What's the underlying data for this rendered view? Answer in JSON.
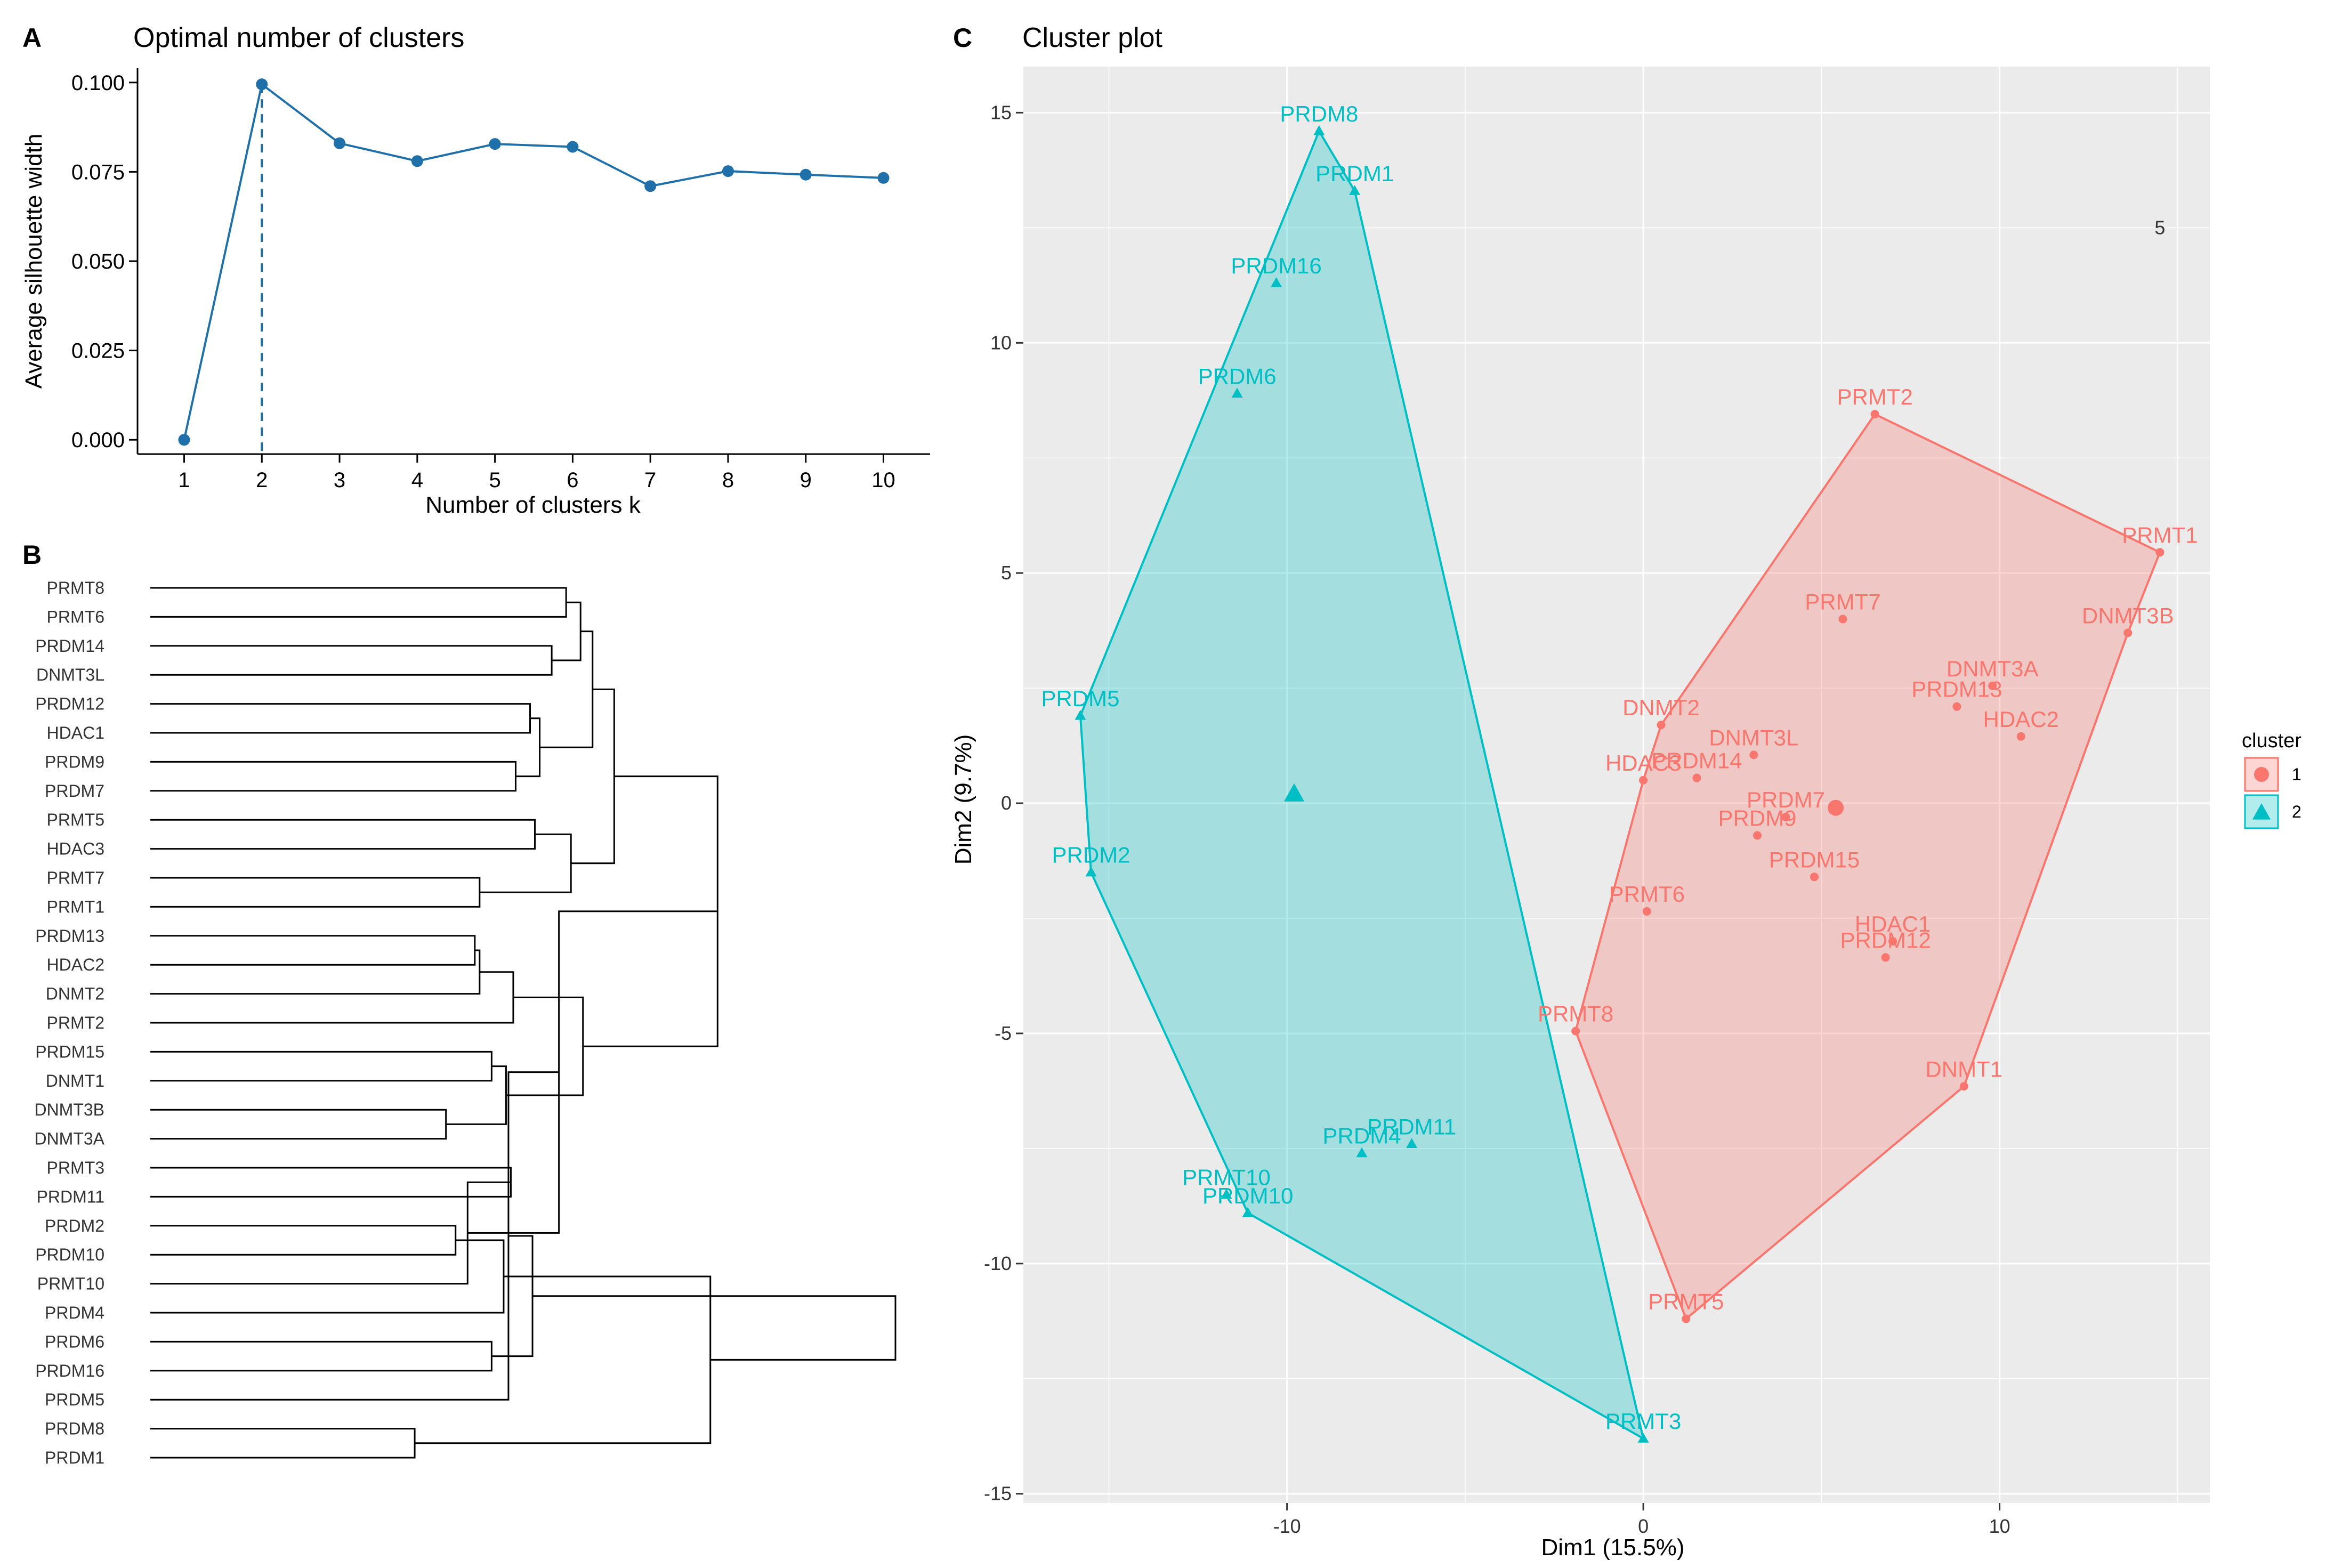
{
  "colors": {
    "line_blue": "#1f6fa8",
    "cluster1": "#f8766d",
    "cluster2": "#00bfc4",
    "panel_bg": "#ebebeb",
    "grid": "#ffffff"
  },
  "chart_data": [
    {
      "id": "A",
      "panel_letter": "A",
      "type": "line",
      "title": "Optimal number of clusters",
      "xlabel": "Number of clusters k",
      "ylabel": "Average silhouette width",
      "x": [
        1,
        2,
        3,
        4,
        5,
        6,
        7,
        8,
        9,
        10
      ],
      "x_tick_labels": [
        "1",
        "2",
        "3",
        "4",
        "5",
        "6",
        "7",
        "8",
        "9",
        "10"
      ],
      "values": [
        0.0,
        0.0995,
        0.083,
        0.078,
        0.0828,
        0.082,
        0.071,
        0.0752,
        0.0742,
        0.0733
      ],
      "ylim": [
        -0.004,
        0.104
      ],
      "y_ticks": [
        0.0,
        0.025,
        0.05,
        0.075,
        0.1
      ],
      "y_tick_labels": [
        "0.000",
        "0.025",
        "0.050",
        "0.075",
        "0.100"
      ],
      "optimal_k": 2
    },
    {
      "id": "B",
      "panel_letter": "B",
      "type": "dendrogram",
      "leaves": [
        "PRMT8",
        "PRMT6",
        "PRDM14",
        "DNMT3L",
        "PRDM12",
        "HDAC1",
        "PRDM9",
        "PRDM7",
        "PRMT5",
        "HDAC3",
        "PRMT7",
        "PRMT1",
        "PRDM13",
        "HDAC2",
        "DNMT2",
        "PRMT2",
        "PRDM15",
        "DNMT1",
        "DNMT3B",
        "DNMT3A",
        "PRMT3",
        "PRDM11",
        "PRDM2",
        "PRDM10",
        "PRMT10",
        "PRDM4",
        "PRDM6",
        "PRDM16",
        "PRDM5",
        "PRDM8",
        "PRDM1"
      ],
      "merges": [
        {
          "a": 0,
          "b": 1,
          "h": 1.73
        },
        {
          "a": 2,
          "b": 3,
          "h": 1.67
        },
        {
          "a": -1,
          "b": -2,
          "h": 1.79
        },
        {
          "a": 4,
          "b": 5,
          "h": 1.58
        },
        {
          "a": 6,
          "b": 7,
          "h": 1.52
        },
        {
          "a": -4,
          "b": -5,
          "h": 1.62
        },
        {
          "a": -3,
          "b": -6,
          "h": 1.84
        },
        {
          "a": 8,
          "b": 9,
          "h": 1.6
        },
        {
          "a": 10,
          "b": 11,
          "h": 1.37
        },
        {
          "a": -8,
          "b": -9,
          "h": 1.75
        },
        {
          "a": -7,
          "b": -10,
          "h": 1.93
        },
        {
          "a": 12,
          "b": 13,
          "h": 1.35
        },
        {
          "a": -12,
          "b": 14,
          "h": 1.37
        },
        {
          "a": -13,
          "b": 15,
          "h": 1.51
        },
        {
          "a": 16,
          "b": 17,
          "h": 1.42
        },
        {
          "a": 18,
          "b": 19,
          "h": 1.23
        },
        {
          "a": -15,
          "b": -16,
          "h": 1.48
        },
        {
          "a": -14,
          "b": -17,
          "h": 1.8
        },
        {
          "a": -11,
          "b": -18,
          "h": 2.36
        },
        {
          "a": 20,
          "b": 21,
          "h": 1.5
        },
        {
          "a": 22,
          "b": 23,
          "h": 1.27
        },
        {
          "a": -20,
          "b": 24,
          "h": 1.32
        },
        {
          "a": -21,
          "b": 25,
          "h": 1.47
        },
        {
          "a": -19,
          "b": -22,
          "h": 1.7
        },
        {
          "a": 26,
          "b": 27,
          "h": 1.42
        },
        {
          "a": -24,
          "b": 28,
          "h": 1.49
        },
        {
          "a": 29,
          "b": 30,
          "h": 1.1
        },
        {
          "a": -25,
          "b": -26,
          "h": 1.59
        },
        {
          "a": -23,
          "b": -27,
          "h": 2.33
        },
        {
          "a": -28,
          "b": -29,
          "h": 3.1
        }
      ],
      "max_height": 3.1
    },
    {
      "id": "C",
      "panel_letter": "C",
      "type": "scatter",
      "title": "Cluster plot",
      "xlabel": "Dim1 (15.5%)",
      "ylabel": "Dim2 (9.7%)",
      "xlim": [
        -17.4,
        15.9
      ],
      "ylim": [
        -15.2,
        16.0
      ],
      "x_ticks": [
        -10,
        0,
        10
      ],
      "x_tick_labels": [
        "-10",
        "0",
        "10"
      ],
      "y_ticks": [
        -15,
        -10,
        -5,
        0,
        5,
        10,
        15
      ],
      "y_tick_labels": [
        "-15",
        "-10",
        "-5",
        "0",
        "5",
        "10",
        "15"
      ],
      "annotation": {
        "x": 14.5,
        "y": 12.5,
        "text": "5"
      },
      "legend": {
        "title": "cluster",
        "entries": [
          "1",
          "2"
        ]
      },
      "series": [
        {
          "name": "1",
          "shape": "circle",
          "centroid": [
            5.4,
            -0.1
          ],
          "hull": [
            "PRMT2",
            "PRMT1",
            "DNMT3B",
            "DNMT1",
            "PRMT5",
            "PRMT8",
            "HDAC3",
            "DNMT2"
          ],
          "points": [
            {
              "label": "PRMT2",
              "x": 6.5,
              "y": 8.45
            },
            {
              "label": "PRMT1",
              "x": 14.5,
              "y": 5.45
            },
            {
              "label": "PRMT7",
              "x": 5.6,
              "y": 4.0
            },
            {
              "label": "DNMT3B",
              "x": 13.6,
              "y": 3.7
            },
            {
              "label": "DNMT3A",
              "x": 9.8,
              "y": 2.55
            },
            {
              "label": "PRDM13",
              "x": 8.8,
              "y": 2.1
            },
            {
              "label": "HDAC2",
              "x": 10.6,
              "y": 1.45
            },
            {
              "label": "DNMT2",
              "x": 0.5,
              "y": 1.7
            },
            {
              "label": "DNMT3L",
              "x": 3.1,
              "y": 1.05
            },
            {
              "label": "PRDM14",
              "x": 1.5,
              "y": 0.55
            },
            {
              "label": "HDAC3",
              "x": 0.0,
              "y": 0.5
            },
            {
              "label": "PRDM7",
              "x": 4.0,
              "y": -0.3
            },
            {
              "label": "PRDM9",
              "x": 3.2,
              "y": -0.7
            },
            {
              "label": "PRDM15",
              "x": 4.8,
              "y": -1.6
            },
            {
              "label": "PRMT6",
              "x": 0.1,
              "y": -2.35
            },
            {
              "label": "HDAC1",
              "x": 7.0,
              "y": -3.0
            },
            {
              "label": "PRDM12",
              "x": 6.8,
              "y": -3.35
            },
            {
              "label": "PRMT8",
              "x": -1.9,
              "y": -4.95
            },
            {
              "label": "DNMT1",
              "x": 9.0,
              "y": -6.15
            },
            {
              "label": "PRMT5",
              "x": 1.2,
              "y": -11.2
            }
          ]
        },
        {
          "name": "2",
          "shape": "triangle",
          "centroid": [
            -9.8,
            0.2
          ],
          "hull": [
            "PRDM8",
            "PRDM1",
            "PRMT3",
            "PRDM10",
            "PRDM2",
            "PRDM5"
          ],
          "points": [
            {
              "label": "PRDM8",
              "x": -9.1,
              "y": 14.6
            },
            {
              "label": "PRDM1",
              "x": -8.1,
              "y": 13.3
            },
            {
              "label": "PRDM16",
              "x": -10.3,
              "y": 11.3
            },
            {
              "label": "PRDM6",
              "x": -11.4,
              "y": 8.9
            },
            {
              "label": "PRDM5",
              "x": -15.8,
              "y": 1.9
            },
            {
              "label": "PRDM2",
              "x": -15.5,
              "y": -1.5
            },
            {
              "label": "PRDM11",
              "x": -6.5,
              "y": -7.4
            },
            {
              "label": "PRDM4",
              "x": -7.9,
              "y": -7.6
            },
            {
              "label": "PRMT10",
              "x": -11.7,
              "y": -8.5
            },
            {
              "label": "PRDM10",
              "x": -11.1,
              "y": -8.9
            },
            {
              "label": "PRMT3",
              "x": 0.0,
              "y": -13.8
            }
          ]
        }
      ]
    }
  ]
}
